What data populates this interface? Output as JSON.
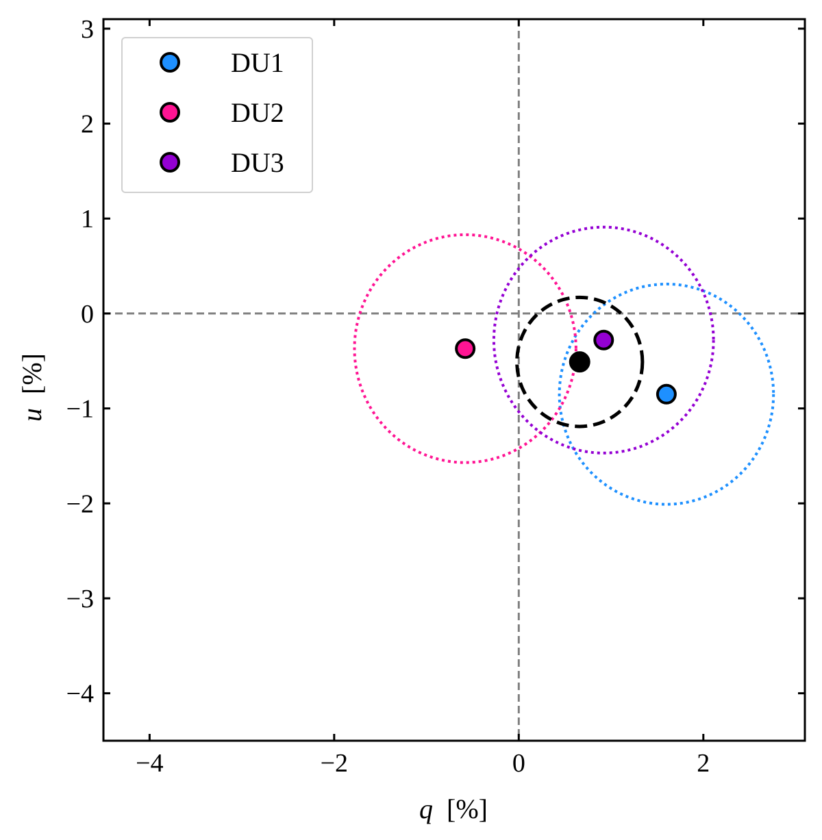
{
  "chart_data": {
    "type": "scatter",
    "title": "",
    "xlabel_var": "q",
    "xlabel_unit": "[%]",
    "ylabel_var": "u",
    "ylabel_unit": "[%]",
    "xlim": [
      -4.5,
      3.1
    ],
    "ylim": [
      -4.5,
      3.1
    ],
    "xticks": [
      -4,
      -2,
      0,
      2
    ],
    "yticks": [
      -4,
      -3,
      -2,
      -1,
      0,
      1,
      2,
      3
    ],
    "xtick_labels": [
      "−4",
      "−2",
      "0",
      "2"
    ],
    "ytick_labels": [
      "−4",
      "−3",
      "−2",
      "−1",
      "0",
      "1",
      "2",
      "3"
    ],
    "grid": false,
    "reference_lines": {
      "x": 0,
      "y": 0,
      "color": "#808080",
      "style": "dashed"
    },
    "legend_position": "top-left",
    "series": [
      {
        "name": "DU1",
        "color": "#1e90ff",
        "q": 1.6,
        "u": -0.85,
        "radius": 1.16,
        "ring_style": "dotted"
      },
      {
        "name": "DU2",
        "color": "#ff1493",
        "q": -0.58,
        "u": -0.37,
        "radius": 1.2,
        "ring_style": "dotted"
      },
      {
        "name": "DU3",
        "color": "#9400d3",
        "q": 0.92,
        "u": -0.28,
        "radius": 1.19,
        "ring_style": "dotted"
      }
    ],
    "combined": {
      "color": "#000000",
      "q": 0.66,
      "u": -0.51,
      "radius": 0.68,
      "ring_style": "dashed"
    }
  }
}
